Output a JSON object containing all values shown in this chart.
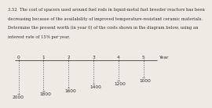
{
  "years": [
    0,
    1,
    2,
    3,
    4,
    5
  ],
  "values": [
    2000,
    1800,
    1600,
    1400,
    1200,
    1000
  ],
  "title_lines": [
    "3.52  The cost of spacers used around fuel rods in liquid-metal fast breeder reactors has been",
    "decreasing because of the availability of improved temperature-resistant ceramic materials.",
    "Determine the present worth (in year 0) of the costs shown in the diagram below, using an",
    "interest rate of 15% per year."
  ],
  "year_label": "Year",
  "background_color": "#eeeae4",
  "line_color": "#555555",
  "text_color": "#333333",
  "title_fontsize": 3.8,
  "tick_fontsize": 4.2
}
